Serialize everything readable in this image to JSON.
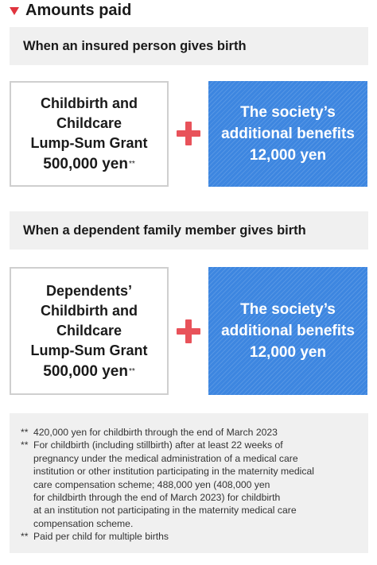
{
  "heading": {
    "icon": "triangle-down-icon",
    "title": "Amounts paid"
  },
  "colors": {
    "accent_red": "#e0343e",
    "benefit_blue": "#3d86e0",
    "panel_gray": "#f0f0f0"
  },
  "sections": [
    {
      "header": "When an insured person gives birth",
      "grant": {
        "lines": [
          "Childbirth and",
          "Childcare",
          "Lump-Sum Grant"
        ],
        "amount": "500,000 yen",
        "amount_note": "**"
      },
      "plus_icon": "plus-icon",
      "benefit": {
        "lines": [
          "The society’s",
          "additional benefits",
          "12,000 yen"
        ]
      }
    },
    {
      "header": "When a dependent family member gives birth",
      "grant": {
        "lines": [
          "Dependents’",
          "Childbirth and",
          "Childcare",
          "Lump-Sum Grant"
        ],
        "amount": "500,000 yen",
        "amount_note": "**"
      },
      "plus_icon": "plus-icon",
      "benefit": {
        "lines": [
          "The society’s",
          "additional benefits",
          "12,000 yen"
        ]
      }
    }
  ],
  "notes": [
    {
      "marker": "**",
      "lines": [
        "420,000 yen for childbirth through the end of March 2023"
      ]
    },
    {
      "marker": "**",
      "lines": [
        "For childbirth (including stillbirth) after at least 22 weeks of",
        "pregnancy under the medical administration of a medical care",
        "institution or other institution participating in the maternity medical",
        "care compensation scheme; 488,000 yen (408,000 yen",
        "for childbirth through the end of March 2023) for childbirth",
        "at an institution not participating in the maternity medical care",
        "compensation scheme."
      ]
    },
    {
      "marker": "**",
      "lines": [
        "Paid per child for multiple births"
      ]
    }
  ]
}
